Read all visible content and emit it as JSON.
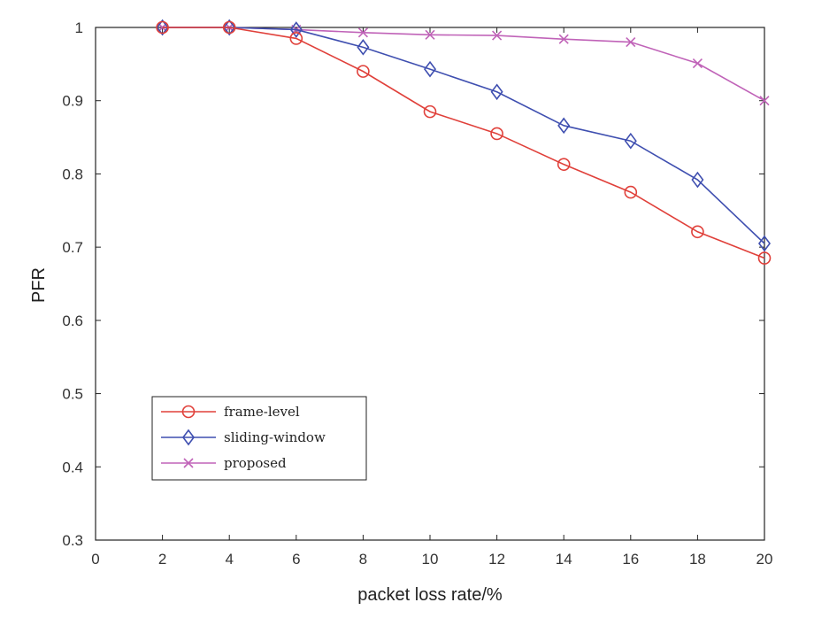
{
  "chart_data": {
    "type": "line",
    "xlabel": "packet loss rate/%",
    "ylabel": "PFR",
    "xlim": [
      0,
      20
    ],
    "ylim": [
      0.3,
      1
    ],
    "xticks": [
      0,
      2,
      4,
      6,
      8,
      10,
      12,
      14,
      16,
      18,
      20
    ],
    "yticks": [
      0.3,
      0.4,
      0.5,
      0.6,
      0.7,
      0.8,
      0.9,
      1
    ],
    "grid": false,
    "legend_position": "bottom-left",
    "x": [
      2,
      4,
      6,
      8,
      10,
      12,
      14,
      16,
      18,
      20
    ],
    "series": [
      {
        "name": "frame-level",
        "color": "#e0403a",
        "marker": "circle",
        "values": [
          1.0,
          1.0,
          0.985,
          0.94,
          0.885,
          0.855,
          0.813,
          0.775,
          0.721,
          0.685
        ]
      },
      {
        "name": "sliding-window",
        "color": "#3f4fb0",
        "marker": "diamond",
        "values": [
          1.0,
          1.0,
          0.997,
          0.973,
          0.943,
          0.912,
          0.866,
          0.845,
          0.792,
          0.705
        ]
      },
      {
        "name": "proposed",
        "color": "#c063b8",
        "marker": "x",
        "values": [
          1.0,
          1.0,
          0.997,
          0.993,
          0.99,
          0.989,
          0.984,
          0.98,
          0.951,
          0.9
        ]
      }
    ]
  }
}
